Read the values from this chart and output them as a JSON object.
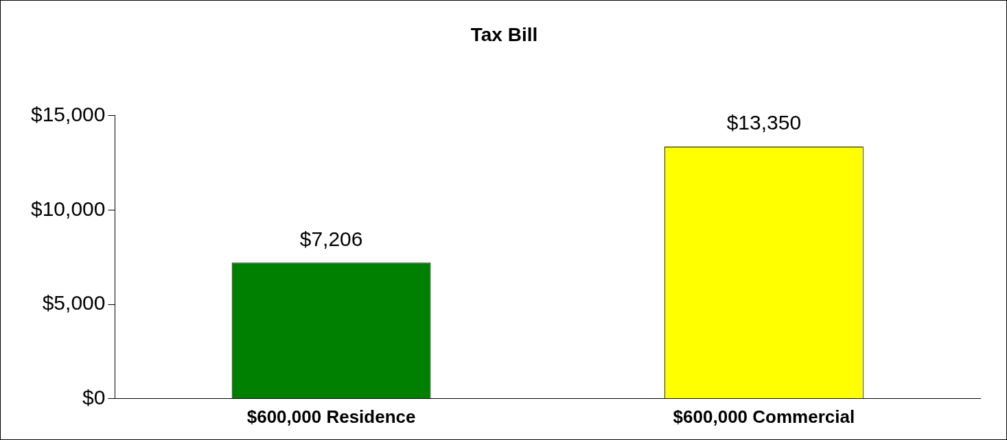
{
  "chart_data": {
    "type": "bar",
    "title": "Tax Bill",
    "categories": [
      "$600,000 Residence",
      "$600,000 Commercial"
    ],
    "values": [
      7206,
      13350
    ],
    "colors": [
      "#008000",
      "#ffff00"
    ],
    "value_labels": [
      "$7,206",
      "$13,350"
    ],
    "ylim": [
      0,
      15000
    ],
    "yticks": [
      {
        "value": 0,
        "label": "$0"
      },
      {
        "value": 5000,
        "label": "$5,000"
      },
      {
        "value": 10000,
        "label": "$10,000"
      },
      {
        "value": 15000,
        "label": "$15,000"
      }
    ],
    "grid": false,
    "legend": false
  }
}
